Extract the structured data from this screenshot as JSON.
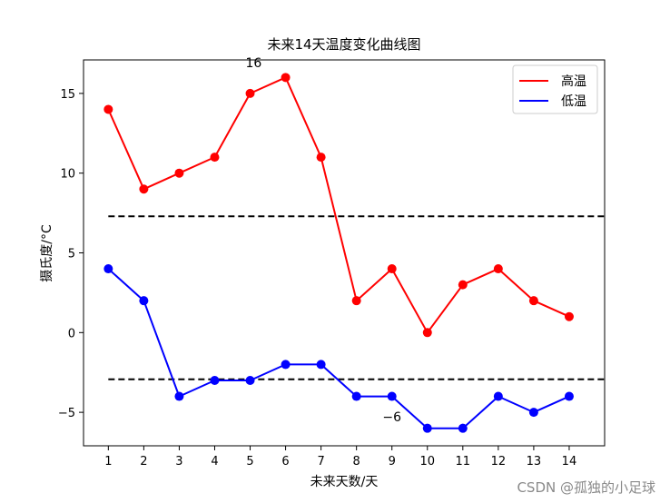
{
  "chart_data": {
    "type": "line",
    "title": "未来14天温度变化曲线图",
    "xlabel": "未来天数/天",
    "ylabel": "摄氏度/°C",
    "x": [
      1,
      2,
      3,
      4,
      5,
      6,
      7,
      8,
      9,
      10,
      11,
      12,
      13,
      14
    ],
    "xlim": [
      0.3,
      15
    ],
    "ylim": [
      -7.1,
      17.1
    ],
    "x_ticks": [
      "1",
      "2",
      "3",
      "4",
      "5",
      "6",
      "7",
      "8",
      "9",
      "10",
      "11",
      "12",
      "13",
      "14"
    ],
    "y_ticks": [
      15,
      10,
      5,
      0,
      -5
    ],
    "y_tick_labels": [
      "15",
      "10",
      "5",
      "0",
      "−5"
    ],
    "series": [
      {
        "name": "高温",
        "color": "#ff0000",
        "values": [
          14,
          9,
          10,
          11,
          15,
          16,
          11,
          2,
          4,
          0,
          3,
          4,
          2,
          1
        ]
      },
      {
        "name": "低温",
        "color": "#0000ff",
        "values": [
          4,
          2,
          -4,
          -3,
          -3,
          -2,
          -2,
          -4,
          -4,
          -6,
          -6,
          -4,
          -5,
          -4
        ]
      }
    ],
    "reference_lines": [
      {
        "y": 7.29,
        "x_from": 1,
        "x_to": 14.98,
        "style": "dashed",
        "color": "#000000"
      },
      {
        "y": -2.93,
        "x_from": 1,
        "x_to": 14.98,
        "style": "dashed",
        "color": "#000000"
      }
    ],
    "annotations": [
      {
        "text": "16",
        "x": 5.1,
        "y": 16.65
      },
      {
        "text": "−6",
        "x": 9.0,
        "y": -5.55
      }
    ],
    "legend_position": "top-right",
    "grid": false
  },
  "watermark": "CSDN @孤独的小足球"
}
